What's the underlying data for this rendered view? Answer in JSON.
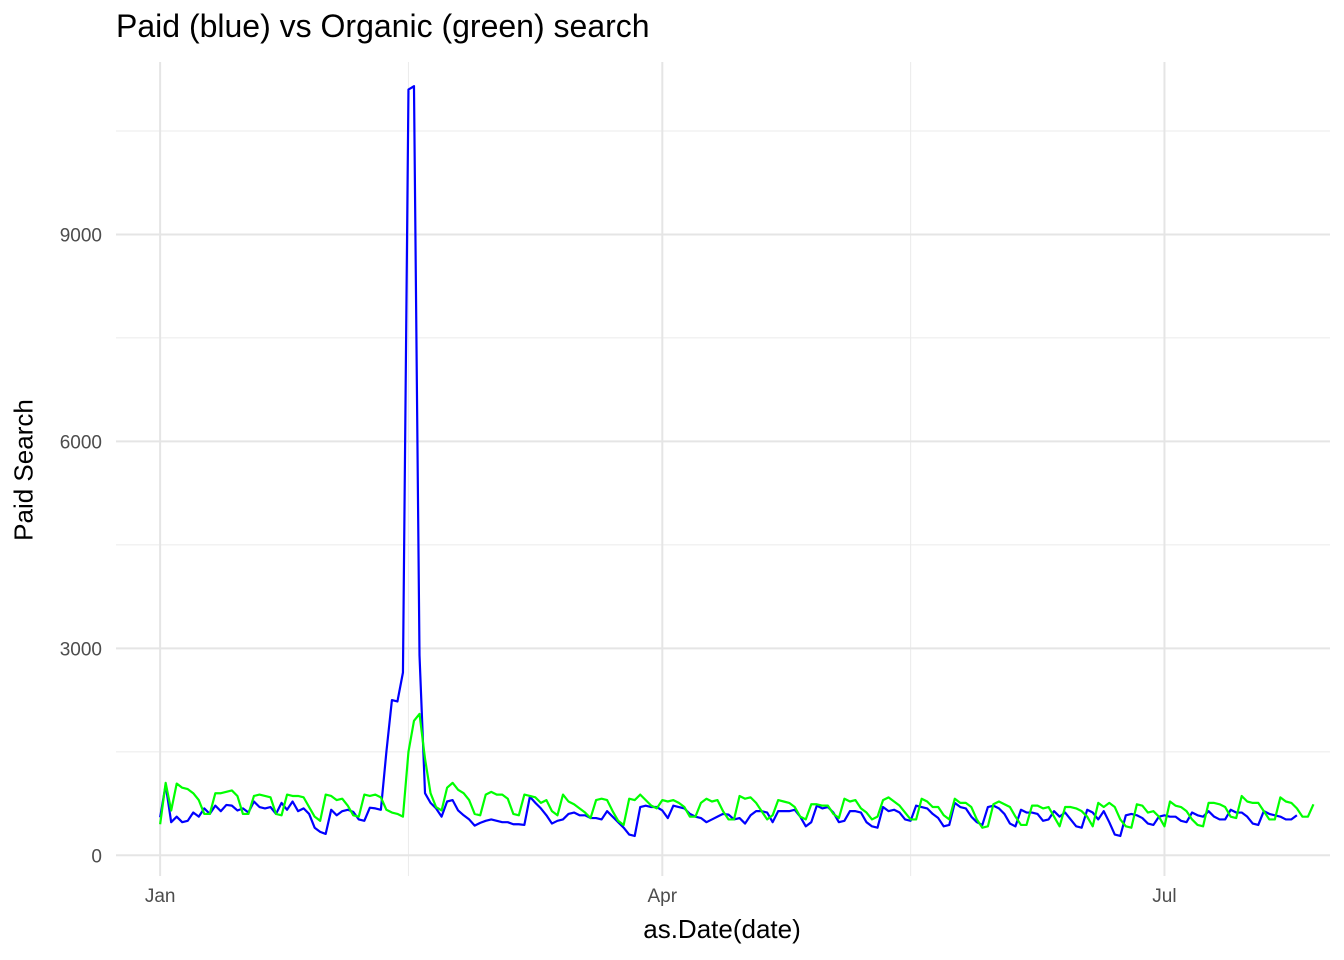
{
  "chart_data": {
    "type": "line",
    "title": "Paid (blue) vs Organic (green) search",
    "xlabel": "as.Date(date)",
    "ylabel": "Paid Search",
    "x_range": [
      "2019-12-24",
      "2020-07-31"
    ],
    "ylim": [
      -300,
      11500
    ],
    "y_ticks": [
      0,
      3000,
      6000,
      9000
    ],
    "x_ticks": [
      {
        "date": "2020-01-01",
        "label": "Jan"
      },
      {
        "date": "2020-04-01",
        "label": "Apr"
      },
      {
        "date": "2020-07-01",
        "label": "Jul"
      }
    ],
    "x_minor_ticks": [
      "2020-02-15",
      "2020-05-16"
    ],
    "grid": true,
    "legend": "none",
    "series": [
      {
        "color": "#0000ff",
        "start_date": "2020-01-01",
        "values": [
          550,
          1020,
          480,
          560,
          480,
          500,
          620,
          560,
          680,
          600,
          720,
          640,
          730,
          720,
          650,
          680,
          620,
          780,
          700,
          680,
          700,
          600,
          760,
          660,
          780,
          640,
          680,
          600,
          400,
          340,
          310,
          660,
          580,
          640,
          660,
          630,
          520,
          500,
          690,
          680,
          660,
          1500,
          2250,
          2230,
          2650,
          11100,
          11150,
          2900,
          900,
          760,
          680,
          560,
          780,
          800,
          650,
          580,
          520,
          430,
          470,
          500,
          520,
          500,
          480,
          480,
          450,
          450,
          440,
          850,
          760,
          680,
          580,
          460,
          500,
          520,
          600,
          620,
          580,
          580,
          540,
          540,
          520,
          640,
          560,
          480,
          400,
          300,
          280,
          700,
          720,
          700,
          700,
          650,
          540,
          720,
          700,
          680,
          600,
          560,
          540,
          480,
          520,
          560,
          600,
          590,
          520,
          540,
          460,
          580,
          640,
          640,
          620,
          480,
          640,
          640,
          640,
          660,
          560,
          420,
          480,
          720,
          680,
          700,
          620,
          480,
          500,
          640,
          640,
          620,
          480,
          420,
          400,
          700,
          640,
          660,
          620,
          520,
          500,
          720,
          700,
          680,
          600,
          540,
          420,
          440,
          760,
          700,
          680,
          560,
          480,
          440,
          700,
          720,
          680,
          600,
          460,
          420,
          660,
          620,
          620,
          600,
          500,
          520,
          640,
          560,
          620,
          520,
          420,
          400,
          660,
          620,
          520,
          640,
          480,
          300,
          280,
          580,
          600,
          580,
          540,
          460,
          440,
          560,
          580,
          560,
          560,
          500,
          480,
          620,
          580,
          560,
          640,
          560,
          520,
          520,
          660,
          620,
          620,
          560,
          460,
          440,
          640,
          600,
          580,
          560,
          520,
          520,
          580
        ]
      },
      {
        "color": "#00ff00",
        "start_date": "2020-01-01",
        "values": [
          450,
          1050,
          650,
          1040,
          980,
          960,
          900,
          800,
          600,
          600,
          900,
          900,
          920,
          940,
          860,
          600,
          600,
          860,
          880,
          860,
          840,
          600,
          580,
          880,
          860,
          860,
          840,
          700,
          560,
          500,
          880,
          860,
          800,
          820,
          720,
          580,
          560,
          880,
          860,
          880,
          840,
          660,
          620,
          600,
          560,
          1500,
          1950,
          2050,
          1400,
          900,
          700,
          650,
          980,
          1050,
          950,
          900,
          800,
          600,
          580,
          880,
          920,
          880,
          880,
          820,
          600,
          580,
          880,
          860,
          840,
          760,
          800,
          640,
          580,
          880,
          780,
          740,
          680,
          620,
          540,
          800,
          820,
          800,
          640,
          500,
          440,
          820,
          800,
          880,
          800,
          720,
          680,
          800,
          780,
          800,
          760,
          700,
          560,
          560,
          760,
          820,
          780,
          800,
          640,
          520,
          520,
          860,
          820,
          840,
          760,
          640,
          520,
          580,
          800,
          780,
          760,
          700,
          560,
          520,
          740,
          740,
          720,
          720,
          600,
          540,
          820,
          780,
          800,
          680,
          620,
          520,
          560,
          800,
          840,
          780,
          720,
          620,
          520,
          520,
          820,
          780,
          700,
          700,
          580,
          520,
          820,
          760,
          760,
          700,
          520,
          400,
          420,
          740,
          780,
          740,
          700,
          560,
          440,
          440,
          720,
          720,
          680,
          700,
          560,
          420,
          700,
          700,
          680,
          640,
          560,
          420,
          760,
          700,
          760,
          700,
          520,
          420,
          400,
          740,
          720,
          620,
          640,
          560,
          420,
          780,
          720,
          700,
          640,
          520,
          440,
          420,
          760,
          760,
          740,
          700,
          560,
          540,
          860,
          780,
          760,
          760,
          640,
          520,
          520,
          840,
          780,
          760,
          680,
          560,
          560,
          740
        ]
      }
    ]
  }
}
